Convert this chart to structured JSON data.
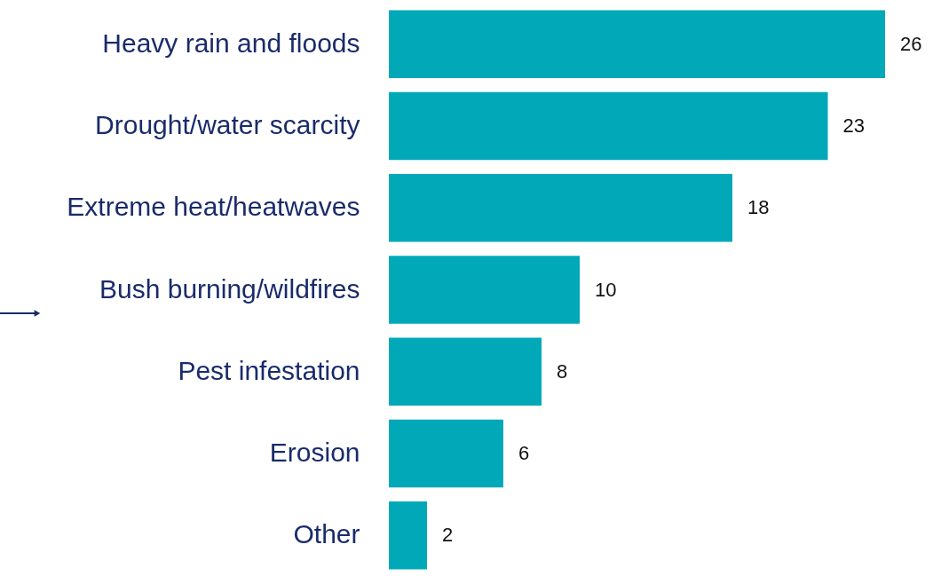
{
  "chart_data": {
    "type": "bar",
    "orientation": "horizontal",
    "categories": [
      "Heavy rain and floods",
      "Drought/water scarcity",
      "Extreme heat/heatwaves",
      "Bush burning/wildfires",
      "Pest infestation",
      "Erosion",
      "Other"
    ],
    "values": [
      26,
      23,
      18,
      10,
      8,
      6,
      2
    ],
    "color": "#00a8b8",
    "data_labels": true,
    "grid": false
  }
}
